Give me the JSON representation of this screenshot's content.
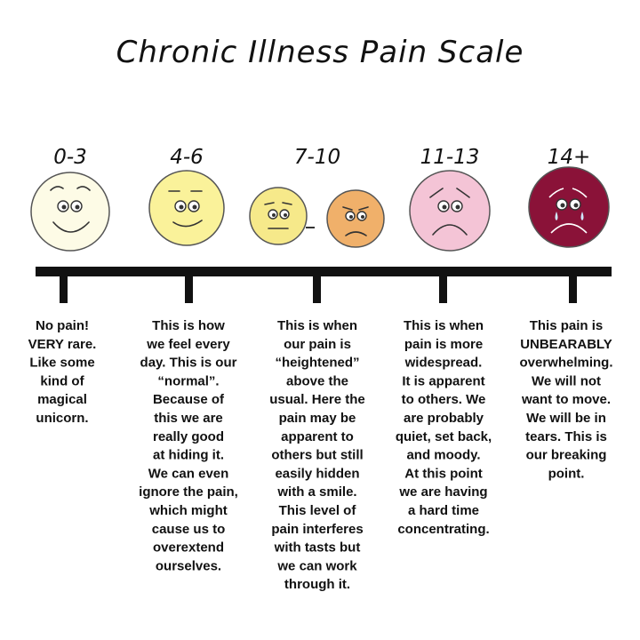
{
  "title": "Chronic Illness Pain Scale",
  "levels": [
    {
      "range": "0-3",
      "description": [
        "No pain!",
        "VERY rare.",
        "Like some",
        "kind of",
        "magical",
        "unicorn."
      ]
    },
    {
      "range": "4-6",
      "description": [
        "This is how",
        "we feel every",
        "day. This is our",
        "“normal”.",
        "Because of",
        "this we are",
        "really good",
        "at hiding it.",
        "We can even",
        "ignore the pain,",
        "which might",
        "cause us to",
        "overextend",
        "ourselves."
      ]
    },
    {
      "range": "7-10",
      "description": [
        "This is when",
        "our pain is",
        "“heightened”",
        "above the",
        "usual. Here the",
        "pain may be",
        "apparent to",
        "others but still",
        "easily hidden",
        "with a smile.",
        "This level of",
        "pain interferes",
        "with tasts but",
        "we can work",
        "through it."
      ]
    },
    {
      "range": "11-13",
      "description": [
        "This is when",
        "pain is more",
        "widespread.",
        "It is apparent",
        "to others. We",
        "are probably",
        "quiet, set back,",
        "and moody.",
        "At this point",
        "we are having",
        "a hard time",
        "concentrating."
      ]
    },
    {
      "range": "14+",
      "description": [
        "This pain is",
        "UNBEARABLY",
        "overwhelming.",
        "We will not",
        "want to move.",
        "We will be in",
        "tears. This is",
        "our breaking",
        "point."
      ]
    }
  ]
}
